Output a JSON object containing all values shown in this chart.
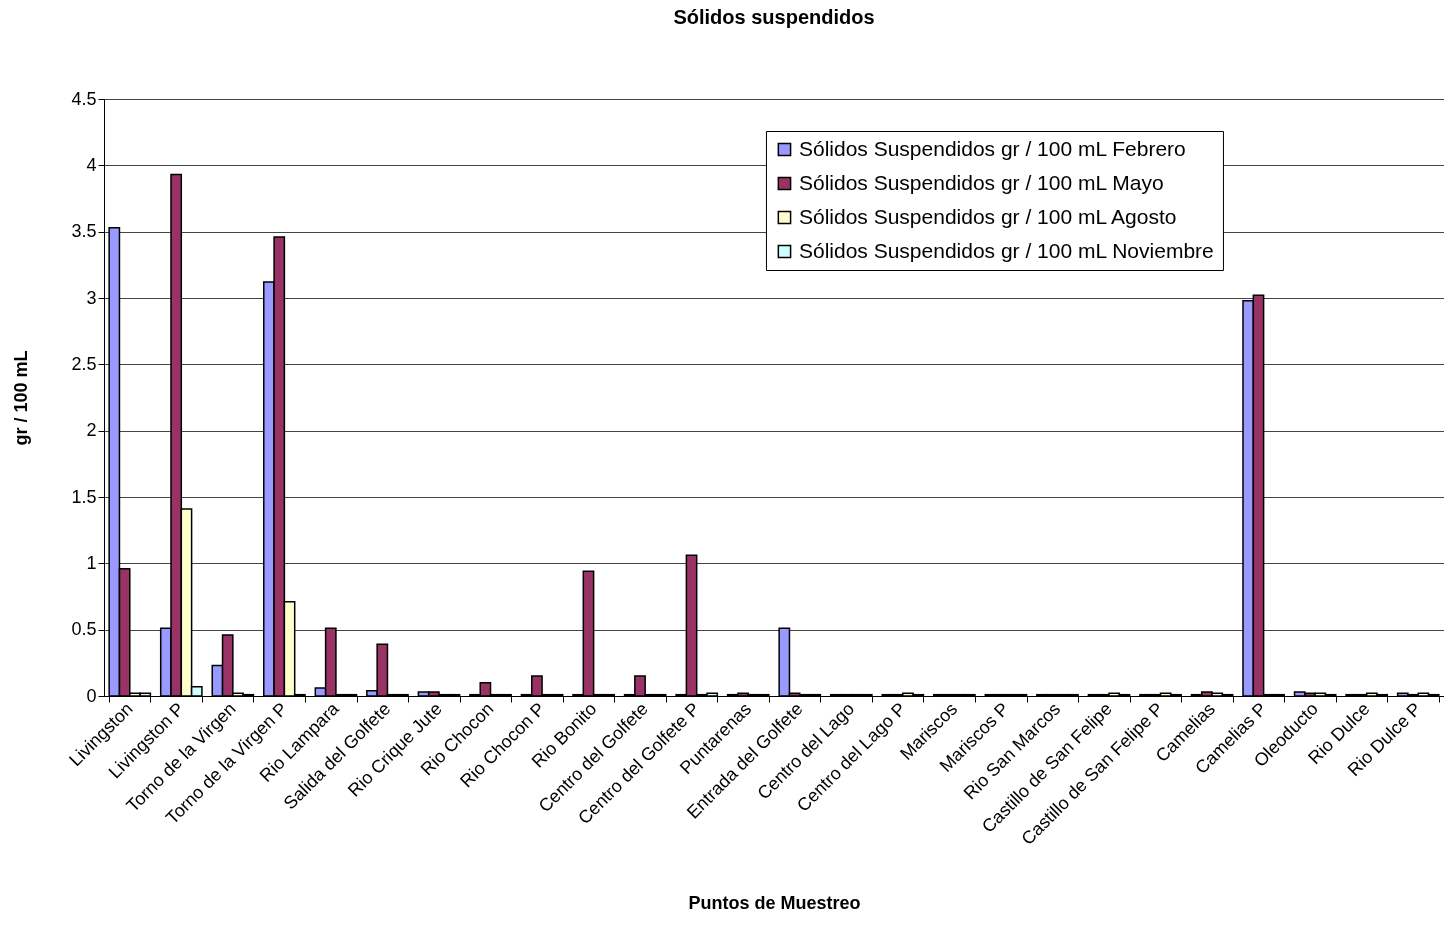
{
  "chart_data": {
    "type": "bar",
    "title": "Sólidos suspendidos",
    "xlabel": "Puntos de Muestreo",
    "ylabel": "gr / 100 mL",
    "categories": [
      "Livingston",
      "Livingston P",
      "Torno de la Virgen",
      "Torno de la Virgen P",
      "Rio Lampara",
      "Salida del Golfete",
      "Rio Crique Jute",
      "Rio Chocon",
      "Rio Chocon P",
      "Rio Bonito",
      "Centro del Golfete",
      "Centro del Golfete P",
      "Puntarenas",
      "Entrada del Golfete",
      "Centro del Lago",
      "Centro del Lago  P",
      "Mariscos",
      "Mariscos P",
      "Rio San Marcos",
      "Castillo de San Felipe",
      "Castillo de San Felipe P",
      "Camelias",
      "Camelias P",
      "Oleoducto",
      "Rio Dulce",
      "Rio Dulce P"
    ],
    "series": [
      {
        "name": "Sólidos Suspendidos gr / 100 mL Febrero",
        "color": "#9999ff",
        "values": [
          3.53,
          0.51,
          0.23,
          3.12,
          0.06,
          0.04,
          0.03,
          0.01,
          0.01,
          0.01,
          0.01,
          0.01,
          0.01,
          0.51,
          0.01,
          0.01,
          0.01,
          0.01,
          0.01,
          0.01,
          0.01,
          0.01,
          2.98,
          0.03,
          0.01,
          0.02
        ]
      },
      {
        "name": "Sólidos Suspendidos gr / 100 mL Mayo",
        "color": "#993366",
        "values": [
          0.96,
          3.93,
          0.46,
          3.46,
          0.51,
          0.39,
          0.03,
          0.1,
          0.15,
          0.94,
          0.15,
          1.06,
          0.02,
          0.02,
          0.01,
          0.01,
          0.01,
          0.01,
          0.01,
          0.01,
          0.01,
          0.03,
          3.02,
          0.02,
          0.01,
          0.01
        ]
      },
      {
        "name": "Sólidos Suspendidos gr / 100 mL Agosto",
        "color": "#ffffcc",
        "values": [
          0.02,
          1.41,
          0.02,
          0.71,
          0.01,
          0.01,
          0.01,
          0.01,
          0.01,
          0.01,
          0.01,
          0.01,
          0.01,
          0.01,
          0.01,
          0.02,
          0.01,
          0.01,
          0.01,
          0.02,
          0.02,
          0.02,
          0.01,
          0.02,
          0.02,
          0.02
        ]
      },
      {
        "name": "Sólidos Suspendidos gr / 100 mL Noviembre",
        "color": "#ccffff",
        "values": [
          0.02,
          0.07,
          0.01,
          0.01,
          0.01,
          0.01,
          0.01,
          0.01,
          0.01,
          0.01,
          0.01,
          0.02,
          0.01,
          0.01,
          0.01,
          0.01,
          0.01,
          0.01,
          0.01,
          0.01,
          0.01,
          0.01,
          0.01,
          0.01,
          0.01,
          0.01
        ]
      }
    ],
    "ylim": [
      0,
      4.5
    ],
    "yticks": [
      0,
      0.5,
      1,
      1.5,
      2,
      2.5,
      3,
      3.5,
      4,
      4.5
    ],
    "grid": "y",
    "legend": "top right"
  }
}
